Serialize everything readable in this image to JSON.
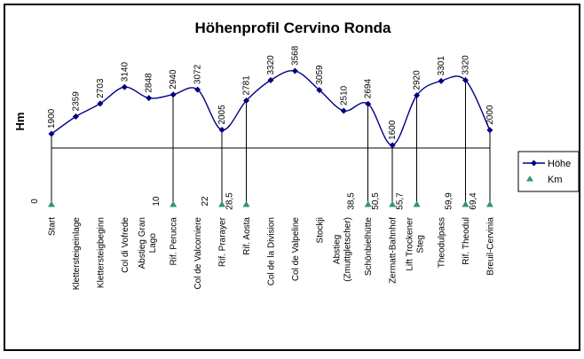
{
  "chart_data": {
    "type": "line",
    "title": "Höhenprofil Cervino Ronda",
    "ylabel": "Hm",
    "grid": false,
    "y_axis_hidden": true,
    "legend_position": "middle-right",
    "categories": [
      "Start",
      "Klettersteigeinlage",
      "Klettersteigbeginn",
      "Col di Vofrede",
      "Abstieg Gran\nLago",
      "Rif. Perucca",
      "Col de Valcorniere",
      "Rif. Prarayer",
      "Rif. Aosta",
      "Col de la Division",
      "Col de Valpeline",
      "Stockji",
      "Abstieg\n(Zmuttgletscher)",
      "Schönbielhütte",
      "Zermatt-Bahnhof",
      "Lift Trockener\nSteg",
      "Theodulpass",
      "Rif. Theodul",
      "Breuil-Cervinia"
    ],
    "series": [
      {
        "name": "Höhe",
        "marker": "diamond",
        "color": "#000080",
        "smoothed": true,
        "values": [
          1900,
          2359,
          2703,
          3140,
          2848,
          2940,
          3072,
          2005,
          2781,
          3320,
          3568,
          3059,
          2510,
          2694,
          1600,
          2920,
          3301,
          3320,
          2000
        ],
        "data_labels": [
          "1900",
          "2359",
          "2703",
          "3140",
          "2848",
          "2940",
          "3072",
          "2005",
          "2781",
          "3320",
          "3568",
          "3059",
          "2510",
          "2694",
          "1600",
          "2920",
          "3301",
          "3320",
          "2000"
        ]
      },
      {
        "name": "Km",
        "marker": "triangle",
        "color": "#339966",
        "smoothed": false,
        "values": [
          0,
          null,
          null,
          null,
          null,
          10,
          null,
          22,
          28.5,
          null,
          null,
          null,
          null,
          38.5,
          50.5,
          55.7,
          null,
          59.9,
          69.4
        ],
        "data_labels": [
          "0",
          null,
          null,
          null,
          null,
          "10",
          null,
          "22",
          "28,5",
          null,
          null,
          null,
          null,
          "38,5",
          "50,5",
          "55,7",
          null,
          "59,9",
          "69,4"
        ]
      }
    ],
    "drop_lines": true,
    "colors": {
      "line": "#000080",
      "km_marker": "#339966",
      "axis": "#000000",
      "text": "#000000",
      "background": "#ffffff"
    }
  }
}
